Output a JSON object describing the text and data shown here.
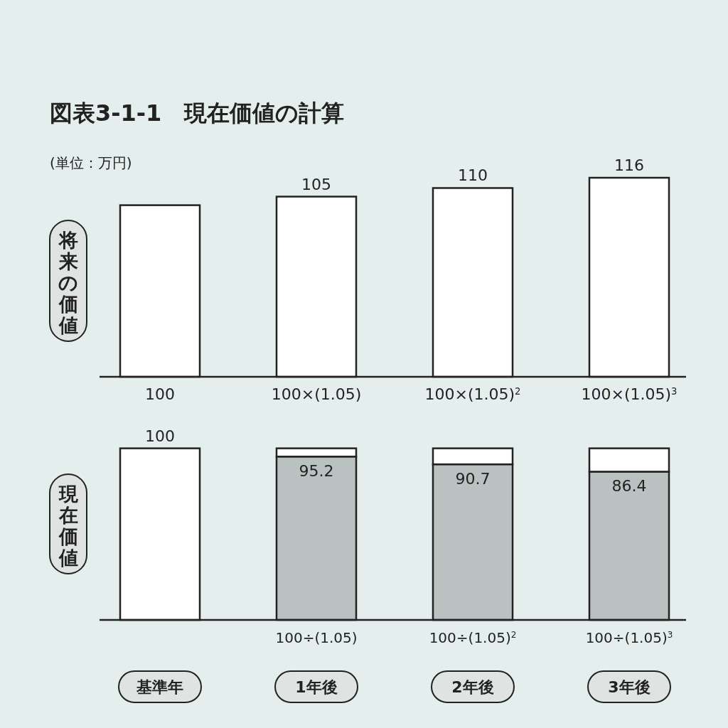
{
  "chart_data": [
    {
      "type": "bar",
      "title": "図表3-1-1　現在価値の計算",
      "subtitle": "(単位：万円)",
      "ylabel": "将来の価値",
      "categories": [
        "100",
        "100×(1.05)",
        "100×(1.05)$^{2}$",
        "100×(1.05)$^{3}$"
      ],
      "series": [
        {
          "color": "#ffffff",
          "values": [
            100,
            105,
            110,
            116
          ],
          "value_labels": [
            null,
            "105",
            "110",
            "116"
          ]
        }
      ]
    },
    {
      "type": "bar",
      "ylabel": "現在価値",
      "stacked": true,
      "categories": [
        "基準年",
        "1年後",
        "2年後",
        "3年後"
      ],
      "series": [
        {
          "colors": [
            "#ffffff",
            "#b9c2c0",
            "#b9c2c0",
            "#b9c2c0"
          ],
          "values": [
            100,
            95.2,
            90.7,
            86.4
          ],
          "value_labels": [
            "100",
            "95.2",
            "90.7",
            "86.4"
          ]
        },
        {
          "color": "#ffffff",
          "values": [
            0,
            4.8,
            9.3,
            13.6
          ]
        }
      ],
      "annotations": [
        {
          "text": "100÷(1.05)",
          "x": "1年後",
          "y": 0
        },
        {
          "text": "100÷(1.05)$^{2}$",
          "x": "2年後",
          "y": 0
        },
        {
          "text": "100÷(1.05)$^{3}$",
          "x": "3年後",
          "y": 0
        }
      ]
    }
  ]
}
